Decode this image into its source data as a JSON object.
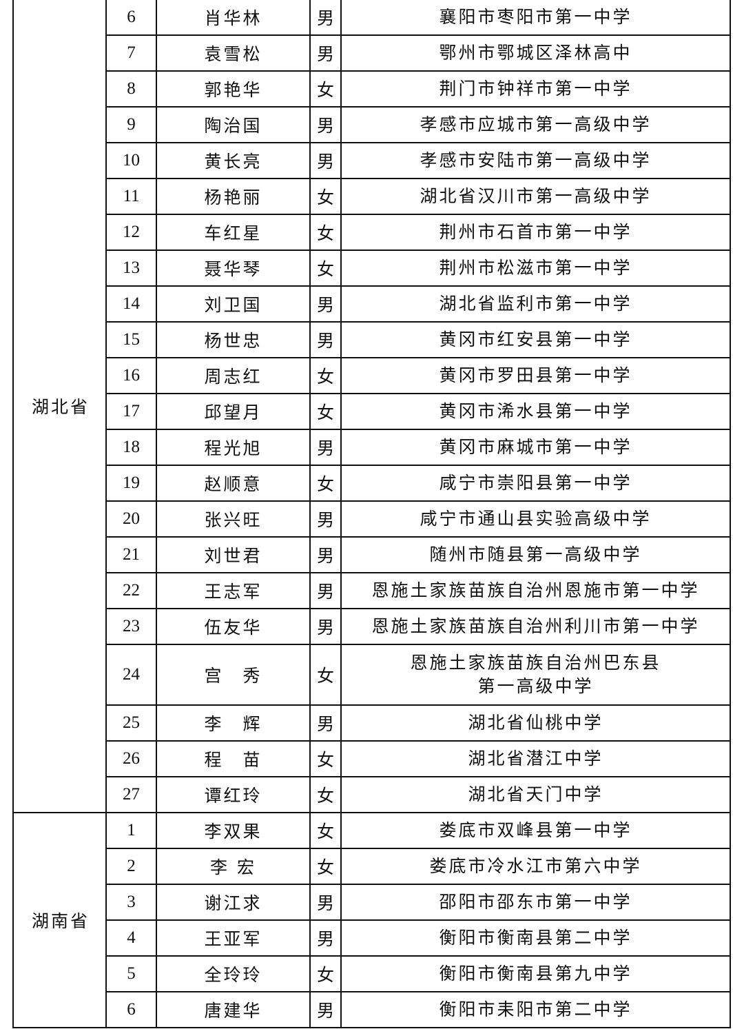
{
  "groups": [
    {
      "province": "湖北省",
      "rows": [
        {
          "no": "6",
          "name": "肖华林",
          "sex": "男",
          "school": "襄阳市枣阳市第一中学"
        },
        {
          "no": "7",
          "name": "袁雪松",
          "sex": "男",
          "school": "鄂州市鄂城区泽林高中"
        },
        {
          "no": "8",
          "name": "郭艳华",
          "sex": "女",
          "school": "荆门市钟祥市第一中学"
        },
        {
          "no": "9",
          "name": "陶治国",
          "sex": "男",
          "school": "孝感市应城市第一高级中学"
        },
        {
          "no": "10",
          "name": "黄长亮",
          "sex": "男",
          "school": "孝感市安陆市第一高级中学"
        },
        {
          "no": "11",
          "name": "杨艳丽",
          "sex": "女",
          "school": "湖北省汉川市第一高级中学"
        },
        {
          "no": "12",
          "name": "车红星",
          "sex": "女",
          "school": "荆州市石首市第一中学"
        },
        {
          "no": "13",
          "name": "聂华琴",
          "sex": "女",
          "school": "荆州市松滋市第一中学"
        },
        {
          "no": "14",
          "name": "刘卫国",
          "sex": "男",
          "school": "湖北省监利市第一中学"
        },
        {
          "no": "15",
          "name": "杨世忠",
          "sex": "男",
          "school": "黄冈市红安县第一中学"
        },
        {
          "no": "16",
          "name": "周志红",
          "sex": "女",
          "school": "黄冈市罗田县第一中学"
        },
        {
          "no": "17",
          "name": "邱望月",
          "sex": "女",
          "school": "黄冈市浠水县第一中学"
        },
        {
          "no": "18",
          "name": "程光旭",
          "sex": "男",
          "school": "黄冈市麻城市第一中学"
        },
        {
          "no": "19",
          "name": "赵顺意",
          "sex": "女",
          "school": "咸宁市崇阳县第一中学"
        },
        {
          "no": "20",
          "name": "张兴旺",
          "sex": "男",
          "school": "咸宁市通山县实验高级中学"
        },
        {
          "no": "21",
          "name": "刘世君",
          "sex": "男",
          "school": "随州市随县第一高级中学"
        },
        {
          "no": "22",
          "name": "王志军",
          "sex": "男",
          "school": "恩施土家族苗族自治州恩施市第一中学"
        },
        {
          "no": "23",
          "name": "伍友华",
          "sex": "男",
          "school": "恩施土家族苗族自治州利川市第一中学"
        },
        {
          "no": "24",
          "name": "宫　秀",
          "sex": "女",
          "school": "恩施土家族苗族自治州巴东县\n第一高级中学"
        },
        {
          "no": "25",
          "name": "李　辉",
          "sex": "男",
          "school": "湖北省仙桃中学"
        },
        {
          "no": "26",
          "name": "程　苗",
          "sex": "女",
          "school": "湖北省潜江中学"
        },
        {
          "no": "27",
          "name": "谭红玲",
          "sex": "女",
          "school": "湖北省天门中学"
        }
      ]
    },
    {
      "province": "湖南省",
      "rows": [
        {
          "no": "1",
          "name": "李双果",
          "sex": "女",
          "school": "娄底市双峰县第一中学"
        },
        {
          "no": "2",
          "name": "李 宏",
          "sex": "女",
          "school": "娄底市冷水江市第六中学"
        },
        {
          "no": "3",
          "name": "谢江求",
          "sex": "男",
          "school": "邵阳市邵东市第一中学"
        },
        {
          "no": "4",
          "name": "王亚军",
          "sex": "男",
          "school": "衡阳市衡南县第二中学"
        },
        {
          "no": "5",
          "name": "全玲玲",
          "sex": "女",
          "school": "衡阳市衡南县第九中学"
        },
        {
          "no": "6",
          "name": "唐建华",
          "sex": "男",
          "school": "衡阳市耒阳市第二中学"
        }
      ]
    }
  ]
}
